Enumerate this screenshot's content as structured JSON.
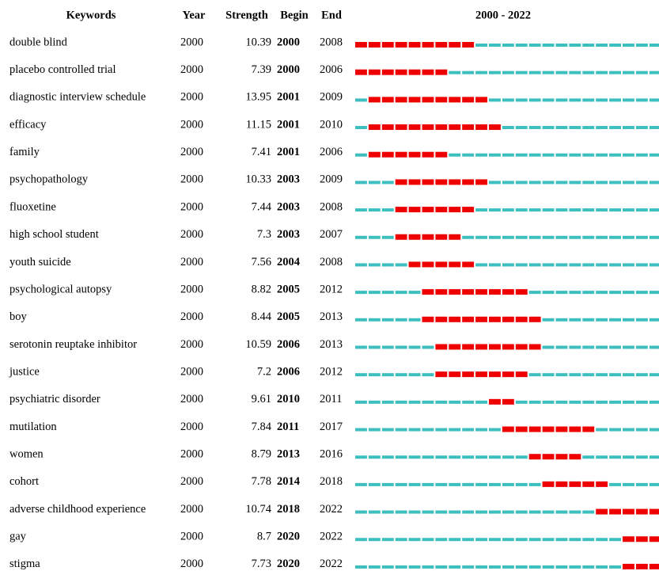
{
  "table": {
    "header": [
      "Keywords",
      "Year",
      "Strength",
      "Begin",
      "End",
      "2000 - 2022"
    ],
    "rows": [
      [
        "double blind",
        2000,
        10.39,
        2000,
        2008
      ],
      [
        "placebo controlled trial",
        2000,
        7.39,
        2000,
        2006
      ],
      [
        "diagnostic interview schedule",
        2000,
        13.95,
        2001,
        2009
      ],
      [
        "efficacy",
        2000,
        11.15,
        2001,
        2010
      ],
      [
        "family",
        2000,
        7.41,
        2001,
        2006
      ],
      [
        "psychopathology",
        2000,
        10.33,
        2003,
        2009
      ],
      [
        "fluoxetine",
        2000,
        7.44,
        2003,
        2008
      ],
      [
        "high school student",
        2000,
        7.3,
        2003,
        2007
      ],
      [
        "youth suicide",
        2000,
        7.56,
        2004,
        2008
      ],
      [
        "psychological autopsy",
        2000,
        8.82,
        2005,
        2012
      ],
      [
        "boy",
        2000,
        8.44,
        2005,
        2013
      ],
      [
        "serotonin reuptake inhibitor",
        2000,
        10.59,
        2006,
        2013
      ],
      [
        "justice",
        2000,
        7.2,
        2006,
        2012
      ],
      [
        "psychiatric disorder",
        2000,
        9.61,
        2010,
        2011
      ],
      [
        "mutilation",
        2000,
        7.84,
        2011,
        2017
      ],
      [
        "women",
        2000,
        8.79,
        2013,
        2016
      ],
      [
        "cohort",
        2000,
        7.78,
        2014,
        2018
      ],
      [
        "adverse childhood experience",
        2000,
        10.74,
        2018,
        2022
      ],
      [
        "gay",
        2000,
        8.7,
        2020,
        2022
      ],
      [
        "stigma",
        2000,
        7.73,
        2020,
        2022
      ]
    ]
  }
}
